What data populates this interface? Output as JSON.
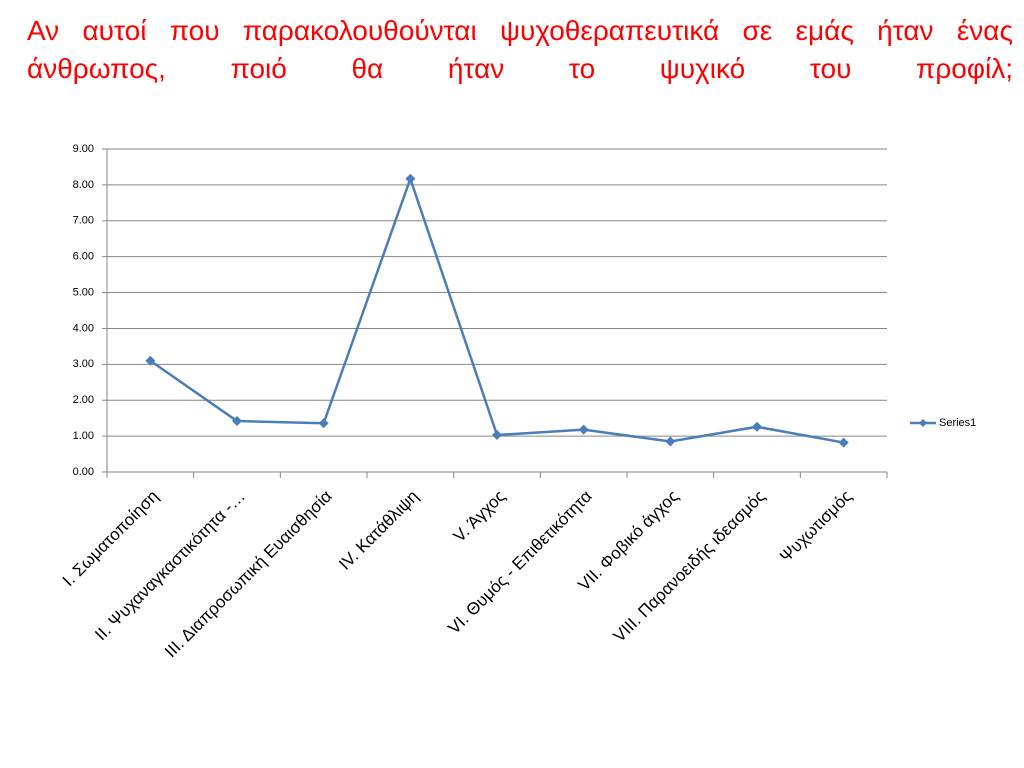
{
  "chart_data": {
    "type": "line",
    "title": "Αν αυτοί που παρακολουθούνται ψυχοθεραπευτικά σε εμάς ήταν ένας άνθρωπος, ποιό θα ήταν το ψυχικό του προφίλ;",
    "categories": [
      "Ι. Σωματοποίηση",
      "ΙΙ. Ψυχαναγκαστικότητα -…",
      "ΙΙΙ. Διαπροσωπική Ευαισθησία",
      "ΙV. Κατάθλιψη",
      "V. Άγχος",
      "VI. Θυμός - Επιθετικότητα",
      "VII. Φοβικό άγχος",
      "VIII. Παρανοειδής ιδεασμός",
      "Ψυχωτισμός"
    ],
    "series": [
      {
        "name": "Series1",
        "color": "#4a7ebb",
        "values": [
          3.1,
          1.42,
          1.36,
          8.17,
          1.03,
          1.18,
          0.85,
          1.26,
          0.82
        ]
      }
    ],
    "ylim": [
      0,
      9
    ],
    "yticks": [
      {
        "value": 0,
        "label": "0.00"
      },
      {
        "value": 1,
        "label": "1.00"
      },
      {
        "value": 2,
        "label": "2.00"
      },
      {
        "value": 3,
        "label": "3.00"
      },
      {
        "value": 4,
        "label": "4.00"
      },
      {
        "value": 5,
        "label": "5.00"
      },
      {
        "value": 6,
        "label": "6.00"
      },
      {
        "value": 7,
        "label": "7.00"
      },
      {
        "value": 8,
        "label": "8.00"
      },
      {
        "value": 9,
        "label": "9.00"
      }
    ],
    "grid": true,
    "legend": "right"
  }
}
